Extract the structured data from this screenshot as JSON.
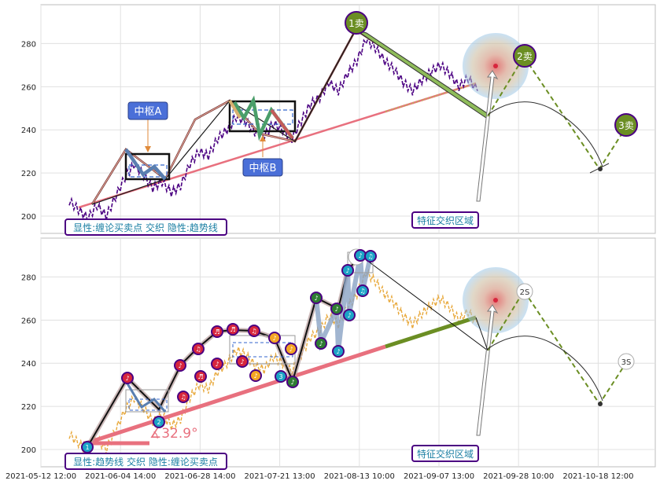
{
  "chart_data": [
    {
      "type": "line",
      "panel": "top",
      "ylim": [
        192,
        298
      ],
      "y_ticks": [
        200,
        220,
        240,
        260,
        280
      ],
      "grid": true,
      "series": [
        {
          "name": "",
          "x": [
            "2021-05-12",
            "2021-05-15",
            "2021-05-18",
            "2021-05-21",
            "2021-05-24",
            "2021-05-27",
            "2021-05-30",
            "2021-06-02",
            "2021-06-05",
            "2021-06-08",
            "2021-06-11",
            "2021-06-14",
            "2021-06-17",
            "2021-06-20",
            "2021-06-23",
            "2021-06-26",
            "2021-06-29",
            "2021-07-02",
            "2021-07-05",
            "2021-07-08",
            "2021-07-11",
            "2021-07-14",
            "2021-07-17",
            "2021-07-20",
            "2021-07-23",
            "2021-07-26",
            "2021-07-29",
            "2021-08-01",
            "2021-08-04",
            "2021-08-07",
            "2021-08-10",
            "2021-08-13",
            "2021-08-16",
            "2021-08-19",
            "2021-08-22",
            "2021-08-25",
            "2021-08-28",
            "2021-08-31",
            "2021-09-03",
            "2021-09-06",
            "2021-09-09",
            "2021-09-12",
            "2021-09-15",
            "2021-09-18",
            "2021-09-21"
          ],
          "values": [
            207,
            203,
            199,
            205,
            200,
            209,
            218,
            224,
            219,
            213,
            216,
            211,
            214,
            224,
            230,
            228,
            236,
            240,
            246,
            244,
            239,
            237,
            243,
            240,
            236,
            244,
            252,
            255,
            262,
            258,
            266,
            272,
            282,
            278,
            272,
            268,
            262,
            258,
            263,
            267,
            270,
            266,
            260,
            264,
            258
          ]
        }
      ],
      "annotations": [
        "中枢A",
        "中枢B",
        "1卖",
        "2卖",
        "3卖",
        "特征交织区域"
      ],
      "legend": "显性:缠论买卖点 交织 隐性:趋势线"
    },
    {
      "type": "line",
      "panel": "bottom",
      "ylim": [
        192,
        298
      ],
      "y_ticks": [
        200,
        220,
        240,
        260,
        280
      ],
      "x_ticks": [
        "2021-05-12 12:00",
        "2021-06-04 14:00",
        "2021-06-28 14:00",
        "2021-07-21 13:00",
        "2021-08-13 10:00",
        "2021-09-07 13:00",
        "2021-09-28 10:00",
        "2021-10-18 12:00"
      ],
      "grid": true,
      "annotations": [
        "∡32.9°",
        "2S",
        "3S",
        "特征交织区域"
      ],
      "legend": "显性:趋势线 交织 隐性:缠论买卖点"
    }
  ],
  "colors": {
    "price": "#4b0082",
    "trend": "#e8707e",
    "accent_green": "#6b8e23",
    "zone_blue": "#3366cc",
    "badge_red": "#d7263d",
    "badge_orange": "#f5a623",
    "badge_green": "#2e7d32",
    "badge_cyan": "#1ba3c6",
    "badge_dark": "#263238"
  },
  "labels": {
    "zhongshu_a": "中枢A",
    "zhongshu_b": "中枢B",
    "sell1": "1卖",
    "sell2": "2卖",
    "sell3": "3卖",
    "zone_top": "特征交织区域",
    "zone_bottom": "特征交织区域",
    "legend_top": "显性:缠论买卖点 交织 隐性:趋势线",
    "legend_bottom": "显性:趋势线 交织 隐性:缠论买卖点",
    "angle": "∡32.9°",
    "s2": "2S",
    "s3": "3S"
  }
}
